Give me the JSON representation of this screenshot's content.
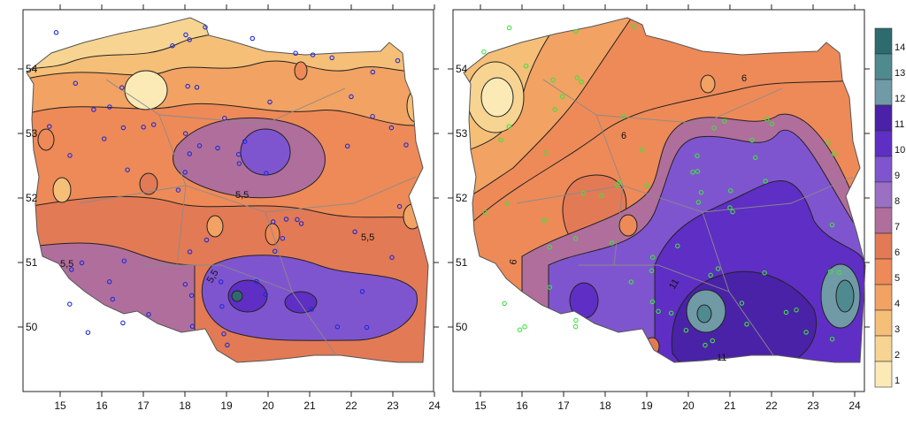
{
  "left_map": {
    "x_ticks": [
      "15",
      "16",
      "17",
      "18",
      "19",
      "20",
      "21",
      "22",
      "23",
      "24"
    ],
    "y_ticks": [
      "54",
      "53",
      "52",
      "51",
      "50"
    ],
    "contour_labels": [
      "5,5",
      "5,5",
      "5,5",
      "5,5"
    ]
  },
  "right_map": {
    "x_ticks": [
      "15",
      "16",
      "17",
      "18",
      "19",
      "20",
      "21",
      "22",
      "23",
      "24"
    ],
    "y_ticks": [
      "54",
      "53",
      "52",
      "51",
      "50"
    ],
    "contour_labels": [
      "6",
      "6",
      "6",
      "11",
      "11"
    ]
  },
  "legend": {
    "values": [
      "14",
      "13",
      "12",
      "11",
      "10",
      "9",
      "8",
      "7",
      "6",
      "5",
      "4",
      "3",
      "2",
      "1"
    ],
    "colors": [
      "#2e6b6e",
      "#4f8a90",
      "#6f9aa6",
      "#4a22a8",
      "#5f2ec4",
      "#7f55cf",
      "#9a6fc4",
      "#b06e9c",
      "#e27a55",
      "#ee8a58",
      "#f2a262",
      "#f5bf78",
      "#f7d492",
      "#fbeab6"
    ]
  },
  "colors": {
    "station_left": "#1f2bd6",
    "station_right": "#3ee33e",
    "border": "#8a8a8a",
    "outline": "#111111"
  }
}
